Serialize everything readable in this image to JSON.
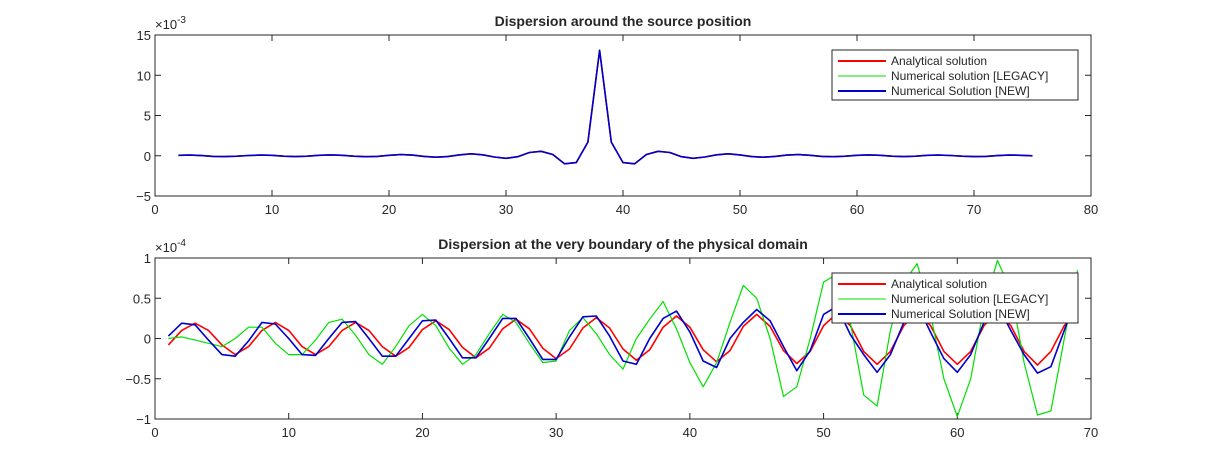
{
  "colors": {
    "analytical": "#ff0000",
    "legacy": "#00e000",
    "new": "#0000cc"
  },
  "chart_data": [
    {
      "type": "line",
      "title": "Dispersion around the source position",
      "xlabel": "",
      "ylabel": "",
      "xlim": [
        0,
        80
      ],
      "ylim": [
        -5,
        15
      ],
      "xticks": [
        "0",
        "10",
        "20",
        "30",
        "40",
        "50",
        "60",
        "70",
        "80"
      ],
      "yticks": [
        "-5",
        "0",
        "5",
        "10",
        "15"
      ],
      "exponent_base": "×10",
      "exponent_power": "-3",
      "legend": "top-right",
      "x": [
        2,
        3,
        4,
        5,
        6,
        7,
        8,
        9,
        10,
        11,
        12,
        13,
        14,
        15,
        16,
        17,
        18,
        19,
        20,
        21,
        22,
        23,
        24,
        25,
        26,
        27,
        28,
        29,
        30,
        31,
        32,
        33,
        34,
        35,
        36,
        37,
        38,
        39,
        40,
        41,
        42,
        43,
        44,
        45,
        46,
        47,
        48,
        49,
        50,
        51,
        52,
        53,
        54,
        55,
        56,
        57,
        58,
        59,
        60,
        61,
        62,
        63,
        64,
        65,
        66,
        67,
        68,
        69,
        70,
        71,
        72,
        73,
        74,
        75
      ],
      "series": [
        {
          "name": "Analytical solution",
          "color_key": "analytical",
          "values": [
            0.05,
            0.08,
            0.02,
            -0.08,
            -0.1,
            -0.05,
            0.03,
            0.08,
            0.05,
            -0.05,
            -0.1,
            -0.06,
            0.05,
            0.1,
            0.06,
            -0.05,
            -0.12,
            -0.08,
            0.06,
            0.14,
            0.08,
            -0.08,
            -0.18,
            -0.1,
            0.1,
            0.24,
            0.12,
            -0.15,
            -0.32,
            -0.12,
            0.4,
            0.55,
            0.15,
            -1.0,
            -0.85,
            1.7,
            13.1,
            1.7,
            -0.85,
            -1.0,
            0.15,
            0.55,
            0.4,
            -0.12,
            -0.32,
            -0.15,
            0.12,
            0.24,
            0.1,
            -0.1,
            -0.18,
            -0.08,
            0.08,
            0.14,
            0.06,
            -0.08,
            -0.12,
            -0.05,
            0.06,
            0.1,
            0.05,
            -0.06,
            -0.1,
            -0.05,
            0.05,
            0.08,
            0.03,
            -0.05,
            -0.1,
            -0.08,
            0.02,
            0.08,
            0.05,
            0.0
          ]
        },
        {
          "name": "Numerical solution [LEGACY]",
          "color_key": "legacy",
          "values": [
            0.05,
            0.08,
            0.02,
            -0.08,
            -0.1,
            -0.05,
            0.03,
            0.08,
            0.05,
            -0.05,
            -0.1,
            -0.06,
            0.05,
            0.1,
            0.06,
            -0.05,
            -0.12,
            -0.08,
            0.06,
            0.14,
            0.08,
            -0.08,
            -0.18,
            -0.1,
            0.1,
            0.24,
            0.12,
            -0.15,
            -0.32,
            -0.12,
            0.4,
            0.55,
            0.15,
            -1.0,
            -0.85,
            1.7,
            13.1,
            1.7,
            -0.85,
            -1.0,
            0.15,
            0.55,
            0.4,
            -0.12,
            -0.32,
            -0.15,
            0.12,
            0.24,
            0.1,
            -0.1,
            -0.18,
            -0.08,
            0.08,
            0.14,
            0.06,
            -0.08,
            -0.12,
            -0.05,
            0.06,
            0.1,
            0.05,
            -0.06,
            -0.1,
            -0.05,
            0.05,
            0.08,
            0.03,
            -0.05,
            -0.1,
            -0.08,
            0.02,
            0.08,
            0.05,
            0.0
          ]
        },
        {
          "name": "Numerical Solution [NEW]",
          "color_key": "new",
          "values": [
            0.05,
            0.08,
            0.02,
            -0.08,
            -0.1,
            -0.05,
            0.03,
            0.08,
            0.05,
            -0.05,
            -0.1,
            -0.06,
            0.05,
            0.1,
            0.06,
            -0.05,
            -0.12,
            -0.08,
            0.06,
            0.14,
            0.08,
            -0.08,
            -0.18,
            -0.1,
            0.1,
            0.24,
            0.12,
            -0.15,
            -0.32,
            -0.12,
            0.4,
            0.55,
            0.15,
            -1.0,
            -0.85,
            1.7,
            13.1,
            1.7,
            -0.85,
            -1.0,
            0.15,
            0.55,
            0.4,
            -0.12,
            -0.32,
            -0.15,
            0.12,
            0.24,
            0.1,
            -0.1,
            -0.18,
            -0.08,
            0.08,
            0.14,
            0.06,
            -0.08,
            -0.12,
            -0.05,
            0.06,
            0.1,
            0.05,
            -0.06,
            -0.1,
            -0.05,
            0.05,
            0.08,
            0.03,
            -0.05,
            -0.1,
            -0.08,
            0.02,
            0.08,
            0.05,
            0.0
          ]
        }
      ]
    },
    {
      "type": "line",
      "title": "Dispersion at the very boundary of the physical domain",
      "xlabel": "",
      "ylabel": "",
      "xlim": [
        0,
        70
      ],
      "ylim": [
        -1,
        1
      ],
      "xticks": [
        "0",
        "10",
        "20",
        "30",
        "40",
        "50",
        "60",
        "70"
      ],
      "yticks": [
        "-1",
        "-0.5",
        "0",
        "0.5",
        "1"
      ],
      "exponent_base": "×10",
      "exponent_power": "-4",
      "legend": "top-right",
      "x": [
        1,
        2,
        3,
        4,
        5,
        6,
        7,
        8,
        9,
        10,
        11,
        12,
        13,
        14,
        15,
        16,
        17,
        18,
        19,
        20,
        21,
        22,
        23,
        24,
        25,
        26,
        27,
        28,
        29,
        30,
        31,
        32,
        33,
        34,
        35,
        36,
        37,
        38,
        39,
        40,
        41,
        42,
        43,
        44,
        45,
        46,
        47,
        48,
        49,
        50,
        51,
        52,
        53,
        54,
        55,
        56,
        57,
        58,
        59,
        60,
        61,
        62,
        63,
        64,
        65,
        66,
        67,
        68,
        69
      ],
      "series": [
        {
          "name": "Analytical solution",
          "color_key": "analytical",
          "values": [
            -0.08,
            0.1,
            0.19,
            0.1,
            -0.08,
            -0.2,
            -0.1,
            0.1,
            0.2,
            0.1,
            -0.1,
            -0.2,
            -0.1,
            0.1,
            0.2,
            0.1,
            -0.1,
            -0.22,
            -0.11,
            0.11,
            0.22,
            0.11,
            -0.11,
            -0.24,
            -0.12,
            0.12,
            0.24,
            0.12,
            -0.12,
            -0.25,
            -0.13,
            0.13,
            0.26,
            0.13,
            -0.13,
            -0.27,
            -0.14,
            0.14,
            0.28,
            0.14,
            -0.14,
            -0.29,
            -0.15,
            0.15,
            0.3,
            0.15,
            -0.15,
            -0.31,
            -0.16,
            0.16,
            0.31,
            0.16,
            -0.16,
            -0.32,
            -0.16,
            0.16,
            0.32,
            0.16,
            -0.16,
            -0.32,
            -0.16,
            0.16,
            0.32,
            0.16,
            -0.16,
            -0.33,
            -0.16,
            0.16,
            0.33
          ]
        },
        {
          "name": "Numerical solution [LEGACY]",
          "color_key": "legacy",
          "values": [
            0.0,
            0.02,
            -0.02,
            -0.06,
            -0.1,
            0.0,
            0.14,
            0.14,
            -0.06,
            -0.2,
            -0.2,
            -0.02,
            0.2,
            0.24,
            0.04,
            -0.2,
            -0.32,
            -0.1,
            0.16,
            0.3,
            0.16,
            -0.12,
            -0.32,
            -0.2,
            0.06,
            0.3,
            0.2,
            -0.06,
            -0.3,
            -0.28,
            0.1,
            0.26,
            0.06,
            -0.2,
            -0.38,
            0.0,
            0.24,
            0.46,
            0.12,
            -0.3,
            -0.6,
            -0.3,
            0.2,
            0.66,
            0.5,
            0.0,
            -0.72,
            -0.6,
            0.0,
            0.7,
            0.8,
            0.2,
            -0.7,
            -0.84,
            0.1,
            0.7,
            0.93,
            0.3,
            -0.5,
            -0.97,
            -0.5,
            0.4,
            0.97,
            0.6,
            -0.3,
            -0.95,
            -0.9,
            0.0,
            0.85
          ]
        },
        {
          "name": "Numerical Solution [NEW]",
          "color_key": "new",
          "values": [
            0.03,
            0.19,
            0.17,
            -0.02,
            -0.2,
            -0.22,
            -0.03,
            0.2,
            0.18,
            0.0,
            -0.2,
            -0.21,
            0.0,
            0.2,
            0.21,
            0.0,
            -0.22,
            -0.22,
            0.0,
            0.22,
            0.23,
            0.0,
            -0.24,
            -0.24,
            0.0,
            0.25,
            0.25,
            0.0,
            -0.26,
            -0.26,
            0.02,
            0.27,
            0.28,
            0.03,
            -0.28,
            -0.32,
            0.0,
            0.25,
            0.34,
            0.08,
            -0.28,
            -0.36,
            0.0,
            0.2,
            0.36,
            0.22,
            -0.1,
            -0.4,
            -0.15,
            0.3,
            0.4,
            0.05,
            -0.2,
            -0.42,
            -0.2,
            0.2,
            0.42,
            0.08,
            -0.25,
            -0.42,
            -0.2,
            0.2,
            0.42,
            0.1,
            -0.2,
            -0.43,
            -0.35,
            0.1,
            0.55
          ]
        }
      ]
    }
  ]
}
